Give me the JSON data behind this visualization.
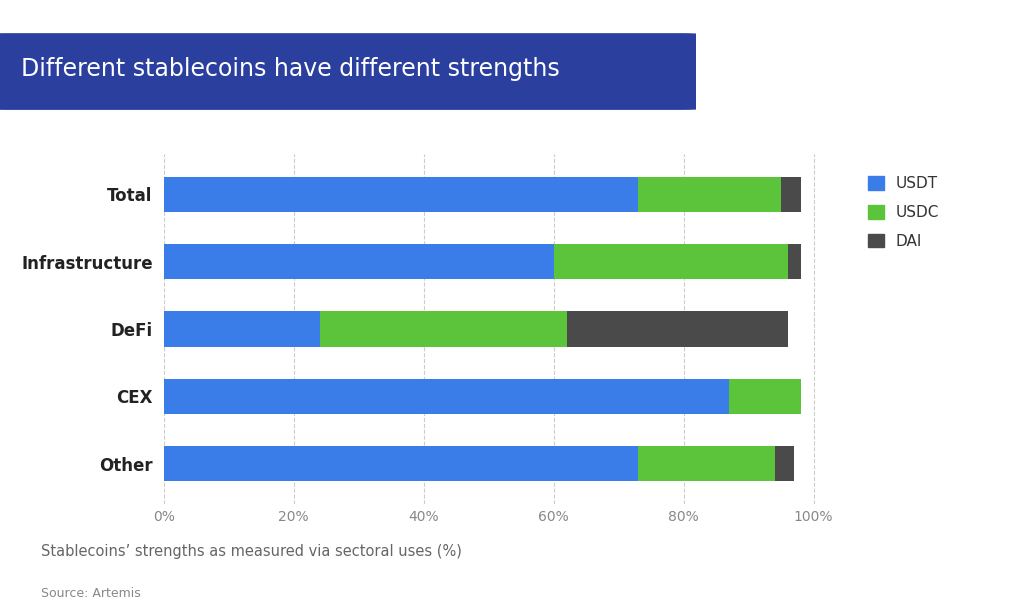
{
  "title": "Different stablecoins have different strengths",
  "categories": [
    "Other",
    "CEX",
    "DeFi",
    "Infrastructure",
    "Total"
  ],
  "usdt": [
    73,
    87,
    24,
    60,
    73
  ],
  "usdc": [
    21,
    11,
    38,
    36,
    22
  ],
  "dai": [
    3,
    0,
    34,
    2,
    3
  ],
  "colors": {
    "usdt": "#3b7de8",
    "usdc": "#5bc43a",
    "dai": "#4a4a4a"
  },
  "legend_labels": [
    "USDT",
    "USDC",
    "DAI"
  ],
  "subtitle": "Stablecoins’ strengths as measured via sectoral uses (%)",
  "source": "Source: Artemis",
  "title_bg_gradient_left": "#2244aa",
  "title_bg_gradient_right": "#1a2e70",
  "title_text_color": "#ffffff",
  "bg_color": "#ffffff",
  "xlim": [
    0,
    104
  ],
  "xticks": [
    0,
    20,
    40,
    60,
    80,
    100
  ],
  "xtick_labels": [
    "0%",
    "20%",
    "40%",
    "60%",
    "80%",
    "100%"
  ]
}
